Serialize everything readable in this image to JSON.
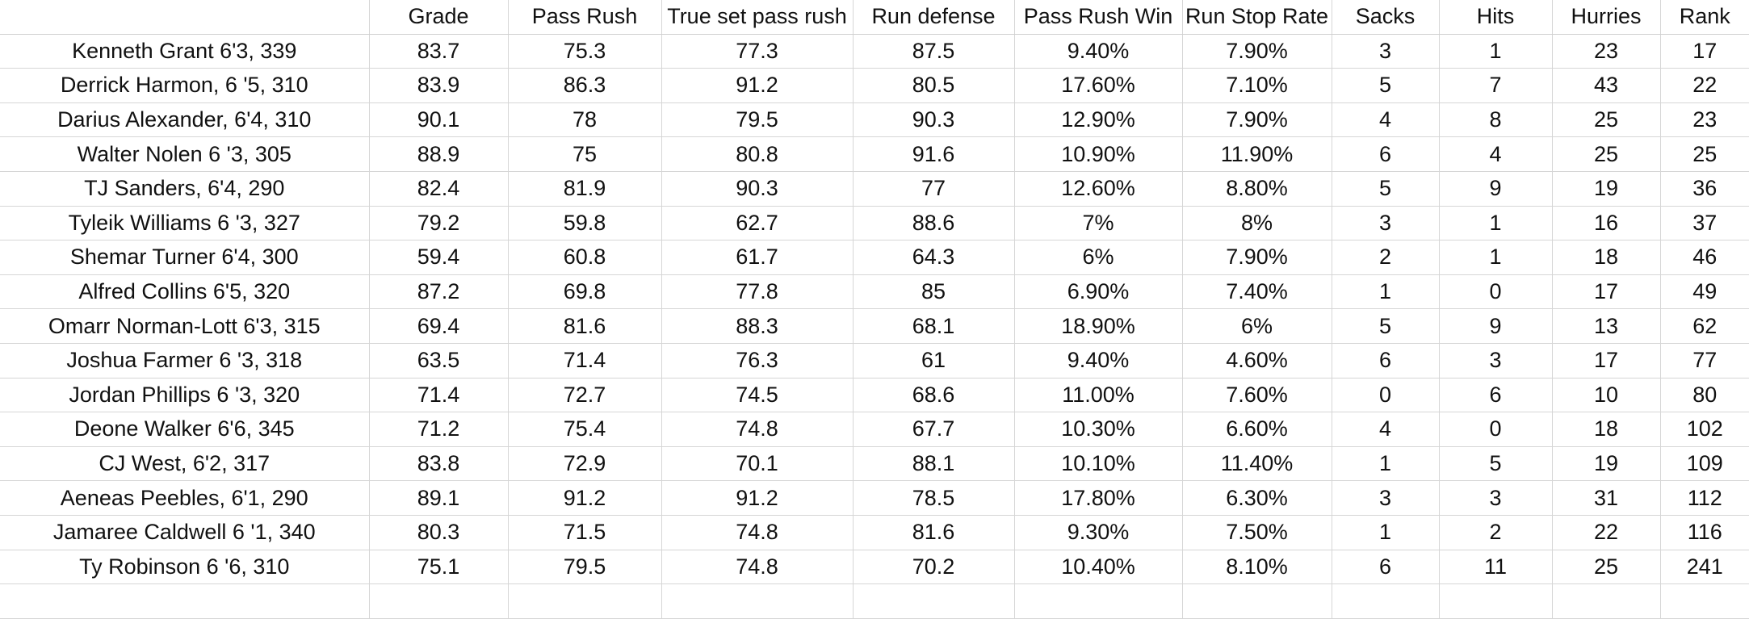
{
  "table": {
    "columns": [
      "",
      "Grade",
      "Pass Rush",
      "True set pass rush",
      "Run defense",
      "Pass Rush Win",
      "Run Stop Rate",
      "Sacks",
      "Hits",
      "Hurries",
      "Rank"
    ],
    "rows": [
      [
        "Kenneth Grant 6'3, 339",
        "83.7",
        "75.3",
        "77.3",
        "87.5",
        "9.40%",
        "7.90%",
        "3",
        "1",
        "23",
        "17"
      ],
      [
        "Derrick Harmon, 6 '5, 310",
        "83.9",
        "86.3",
        "91.2",
        "80.5",
        "17.60%",
        "7.10%",
        "5",
        "7",
        "43",
        "22"
      ],
      [
        "Darius Alexander, 6'4, 310",
        "90.1",
        "78",
        "79.5",
        "90.3",
        "12.90%",
        "7.90%",
        "4",
        "8",
        "25",
        "23"
      ],
      [
        "Walter Nolen 6 '3, 305",
        "88.9",
        "75",
        "80.8",
        "91.6",
        "10.90%",
        "11.90%",
        "6",
        "4",
        "25",
        "25"
      ],
      [
        "TJ Sanders, 6'4, 290",
        "82.4",
        "81.9",
        "90.3",
        "77",
        "12.60%",
        "8.80%",
        "5",
        "9",
        "19",
        "36"
      ],
      [
        "Tyleik Williams 6 '3, 327",
        "79.2",
        "59.8",
        "62.7",
        "88.6",
        "7%",
        "8%",
        "3",
        "1",
        "16",
        "37"
      ],
      [
        "Shemar Turner 6'4, 300",
        "59.4",
        "60.8",
        "61.7",
        "64.3",
        "6%",
        "7.90%",
        "2",
        "1",
        "18",
        "46"
      ],
      [
        "Alfred Collins 6'5, 320",
        "87.2",
        "69.8",
        "77.8",
        "85",
        "6.90%",
        "7.40%",
        "1",
        "0",
        "17",
        "49"
      ],
      [
        "Omarr Norman-Lott 6'3, 315",
        "69.4",
        "81.6",
        "88.3",
        "68.1",
        "18.90%",
        "6%",
        "5",
        "9",
        "13",
        "62"
      ],
      [
        "Joshua Farmer 6 '3, 318",
        "63.5",
        "71.4",
        "76.3",
        "61",
        "9.40%",
        "4.60%",
        "6",
        "3",
        "17",
        "77"
      ],
      [
        "Jordan Phillips 6 '3, 320",
        "71.4",
        "72.7",
        "74.5",
        "68.6",
        "11.00%",
        "7.60%",
        "0",
        "6",
        "10",
        "80"
      ],
      [
        "Deone Walker 6'6, 345",
        "71.2",
        "75.4",
        "74.8",
        "67.7",
        "10.30%",
        "6.60%",
        "4",
        "0",
        "18",
        "102"
      ],
      [
        "CJ West, 6'2, 317",
        "83.8",
        "72.9",
        "70.1",
        "88.1",
        "10.10%",
        "11.40%",
        "1",
        "5",
        "19",
        "109"
      ],
      [
        "Aeneas Peebles, 6'1, 290",
        "89.1",
        "91.2",
        "91.2",
        "78.5",
        "17.80%",
        "6.30%",
        "3",
        "3",
        "31",
        "112"
      ],
      [
        "Jamaree Caldwell 6 '1, 340",
        "80.3",
        "71.5",
        "74.8",
        "81.6",
        "9.30%",
        "7.50%",
        "1",
        "2",
        "22",
        "116"
      ],
      [
        "Ty Robinson 6 '6, 310",
        "75.1",
        "79.5",
        "74.8",
        "70.2",
        "10.40%",
        "8.10%",
        "6",
        "11",
        "25",
        "241"
      ],
      [
        "",
        "",
        "",
        "",
        "",
        "",
        "",
        "",
        "",
        "",
        ""
      ]
    ]
  }
}
